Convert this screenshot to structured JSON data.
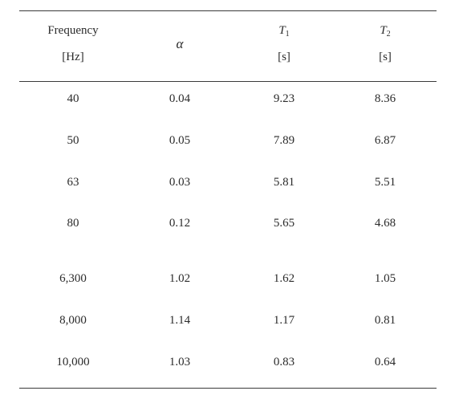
{
  "table": {
    "headers": {
      "frequency": {
        "name": "Frequency",
        "unit": "[Hz]"
      },
      "alpha": {
        "symbol": "α"
      },
      "t1": {
        "symbol": "T",
        "subscript": "1",
        "unit": "[s]"
      },
      "t2": {
        "symbol": "T",
        "subscript": "2",
        "unit": "[s]"
      }
    },
    "rows": [
      {
        "frequency": "40",
        "alpha": "0.04",
        "t1": "9.23",
        "t2": "8.36"
      },
      {
        "frequency": "50",
        "alpha": "0.05",
        "t1": "7.89",
        "t2": "6.87"
      },
      {
        "frequency": "63",
        "alpha": "0.03",
        "t1": "5.81",
        "t2": "5.51"
      },
      {
        "frequency": "80",
        "alpha": "0.12",
        "t1": "5.65",
        "t2": "4.68"
      },
      {
        "frequency": "6,300",
        "alpha": "1.02",
        "t1": "1.62",
        "t2": "1.05"
      },
      {
        "frequency": "8,000",
        "alpha": "1.14",
        "t1": "1.17",
        "t2": "0.81"
      },
      {
        "frequency": "10,000",
        "alpha": "1.03",
        "t1": "0.83",
        "t2": "0.64"
      }
    ]
  }
}
